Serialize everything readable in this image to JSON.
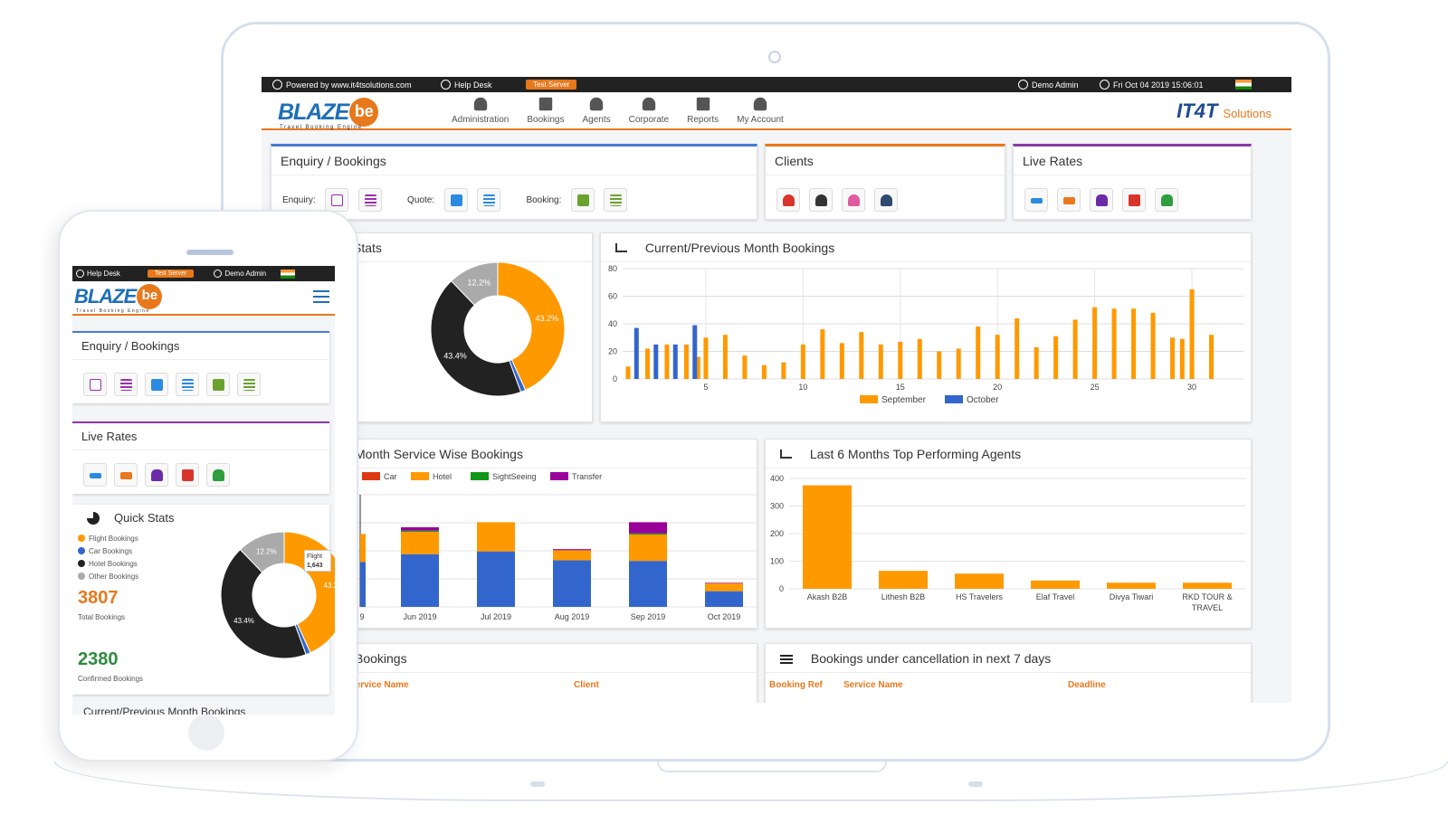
{
  "topbar": {
    "powered_by": "Powered by www.it4tsolutions.com",
    "help_desk": "Help Desk",
    "server_badge": "Test Server",
    "user": "Demo Admin",
    "datetime": "Fri Oct 04 2019 15:06:01"
  },
  "brand": {
    "name": "BLAZE",
    "mark": "be",
    "tagline": "Travel Booking Engine",
    "partner": "IT4T",
    "partner_suffix": "Solutions"
  },
  "nav": [
    {
      "label": "Administration",
      "icon": "admin-gear-icon"
    },
    {
      "label": "Bookings",
      "icon": "folder-icon"
    },
    {
      "label": "Agents",
      "icon": "users-icon"
    },
    {
      "label": "Corporate",
      "icon": "corporate-user-icon"
    },
    {
      "label": "Reports",
      "icon": "table-icon"
    },
    {
      "label": "My Account",
      "icon": "user-icon"
    }
  ],
  "enquiry_panel": {
    "title": "Enquiry / Bookings",
    "enquiry_label": "Enquiry:",
    "quote_label": "Quote:",
    "booking_label": "Booking:"
  },
  "clients_panel": {
    "title": "Clients"
  },
  "live_rates_panel": {
    "title": "Live Rates"
  },
  "stats_panel": {
    "title": "Stats"
  },
  "month_bookings_panel": {
    "title": "Current/Previous Month Bookings"
  },
  "service_wise_panel": {
    "title": "Month Service Wise Bookings"
  },
  "top_agents_panel": {
    "title": "Last 6 Months Top Performing Agents"
  },
  "recent_panel": {
    "title": "Bookings",
    "col_service": "Service Name",
    "col_client": "Client"
  },
  "cancellation_panel": {
    "title": "Bookings under cancellation in next 7 days",
    "col_ref": "Booking Ref",
    "col_service": "Service Name",
    "col_deadline": "Deadline"
  },
  "colors": {
    "orange": "#ff9900",
    "blue": "#3366cc",
    "dark": "#222222",
    "gray": "#aaaaaa",
    "red": "#dc3912",
    "green": "#109618",
    "purple": "#990099"
  },
  "chart_data": [
    {
      "type": "pie",
      "labels": [
        "Flight Bookings",
        "Car Bookings",
        "Hotel Bookings",
        "Other Bookings"
      ],
      "values": [
        43.2,
        1.2,
        43.4,
        12.2
      ],
      "data_labels": [
        "43.2%",
        "",
        "43.4%",
        "12.2%"
      ]
    },
    {
      "type": "bar",
      "title": "Current/Previous Month Bookings",
      "x_ticks": [
        5,
        10,
        15,
        20,
        25,
        30
      ],
      "y_ticks": [
        0,
        20,
        40,
        60,
        80
      ],
      "ylim": [
        0,
        80
      ],
      "series": [
        {
          "name": "September",
          "values": [
            9,
            22,
            25,
            25,
            16,
            30,
            32,
            17,
            10,
            12,
            25,
            36,
            26,
            34,
            25,
            27,
            29,
            20,
            22,
            38,
            32,
            44,
            23,
            31,
            43,
            52,
            51,
            51,
            48,
            30,
            29,
            65,
            32
          ]
        },
        {
          "name": "October",
          "values": [
            37,
            25,
            25,
            39
          ]
        }
      ],
      "september_days": [
        1,
        2,
        3,
        4,
        4.6,
        5,
        6,
        7,
        8,
        9,
        10,
        11,
        12,
        13,
        14,
        15,
        16,
        17,
        18,
        19,
        20,
        21,
        22,
        23,
        24,
        25,
        26,
        27,
        28,
        29,
        29.5,
        30,
        31
      ],
      "october_days": [
        1.2,
        2.2,
        3.2,
        4.2
      ],
      "legend": [
        "September",
        "October"
      ],
      "legend_position": "bottom"
    },
    {
      "type": "bar",
      "stacked": true,
      "title": "Month Service Wise Bookings",
      "categories": [
        "May 2019",
        "Jun 2019",
        "Jul 2019",
        "Aug 2019",
        "Sep 2019",
        "Oct 2019"
      ],
      "tick_labels": [
        "9",
        "Jun 2019",
        "Jul 2019",
        "Aug 2019",
        "Sep 2019",
        "Oct 2019"
      ],
      "series": [
        {
          "name": "Car",
          "values": [
            0,
            0,
            0,
            0,
            0,
            0
          ]
        },
        {
          "name": "Flight",
          "values": [
            80,
            94,
            99,
            83,
            82,
            28
          ]
        },
        {
          "name": "Hotel",
          "values": [
            50,
            40,
            52,
            18,
            47,
            14
          ]
        },
        {
          "name": "SightSeeing",
          "values": [
            0,
            2,
            0,
            0,
            2,
            0
          ]
        },
        {
          "name": "Transfer",
          "values": [
            0,
            6,
            0,
            2,
            20,
            1
          ]
        }
      ],
      "legend": [
        "Car",
        "Hotel",
        "SightSeeing",
        "Transfer"
      ],
      "ylim": [
        0,
        200
      ]
    },
    {
      "type": "bar",
      "title": "Last 6 Months Top Performing Agents",
      "categories": [
        "Akash B2B",
        "Lithesh B2B",
        "HS Travelers",
        "Elaf Travel",
        "Divya Tiwari",
        "RKD TOUR & TRAVEL"
      ],
      "values": [
        375,
        65,
        55,
        30,
        22,
        22
      ],
      "y_ticks": [
        0,
        100,
        200,
        300,
        400
      ],
      "ylim": [
        0,
        400
      ]
    }
  ],
  "phone": {
    "help_desk": "Help Desk",
    "server_badge": "Test Server",
    "user": "Demo Admin",
    "enquiry_title": "Enquiry / Bookings",
    "live_rates_title": "Live Rates",
    "quick_stats_title": "Quick Stats",
    "legend": [
      "Flight Bookings",
      "Car Bookings",
      "Hotel Bookings",
      "Other Bookings"
    ],
    "total_bookings": "3807",
    "total_label": "Total Bookings",
    "confirmed_bookings": "2380",
    "confirmed_label": "Confirmed Bookings",
    "tooltip_title": "Flight",
    "tooltip_value": "1,643",
    "pie_labels": [
      "43.2",
      "43.4%",
      "12.2%"
    ],
    "next_title": "Current/Previous Month Bookings"
  }
}
